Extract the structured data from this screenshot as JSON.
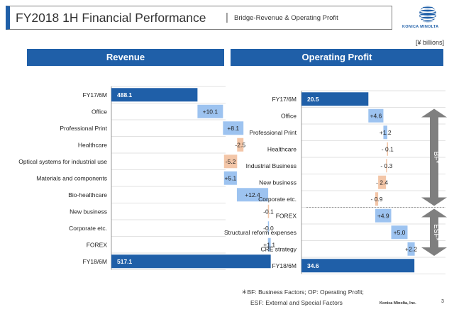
{
  "header": {
    "title": "FY2018 1H Financial Performance",
    "separator": "|",
    "subtitle": "Bridge-Revenue & Operating Profit",
    "brand_logo_text": "KONICA MINOLTA"
  },
  "unit": "[¥ billions]",
  "colors": {
    "total": "#1f5fa8",
    "increase": "#9dc3f0",
    "decrease": "#f3c6a8",
    "arrow": "#7f7f7f"
  },
  "chart_data": [
    {
      "type": "bar",
      "subtype": "waterfall",
      "title": "Revenue",
      "categories": [
        "FY17/6M",
        "Office",
        "Professional Print",
        "Healthcare",
        "Optical systems for industrial use",
        "Materials and components",
        "Bio-healthcare",
        "New business",
        "Corporate etc.",
        "FOREX",
        "FY18/6M"
      ],
      "values": [
        488.1,
        10.1,
        8.1,
        -2.5,
        -5.2,
        5.1,
        12.4,
        -0.1,
        -0.0,
        1.1,
        517.1
      ],
      "labels": [
        "488.1",
        "+10.1",
        "+8.1",
        "-2.5",
        "-5.2",
        "+5.1",
        "+12.4",
        "-0.1",
        "-0.0",
        "+1.1",
        "517.1"
      ],
      "kinds": [
        "total",
        "delta",
        "delta",
        "delta",
        "delta",
        "delta",
        "delta",
        "delta",
        "delta",
        "delta",
        "total"
      ]
    },
    {
      "type": "bar",
      "subtype": "waterfall",
      "title": "Operating Profit",
      "categories": [
        "FY17/6M",
        "Office",
        "Professional Print",
        "Healthcare",
        "Industrial Business",
        "New business",
        "Corporate etc.",
        "FOREX",
        "Structural reform expenses",
        "CRE strategy",
        "FY18/6M"
      ],
      "values": [
        20.5,
        4.6,
        1.2,
        -0.1,
        -0.3,
        -2.4,
        -0.9,
        4.9,
        5.0,
        2.2,
        34.6
      ],
      "labels": [
        "20.5",
        "+4.6",
        "+1.2",
        "- 0.1",
        "- 0.3",
        "- 2.4",
        "- 0.9",
        "+4.9",
        "+5.0",
        "+2.2",
        "34.6"
      ],
      "kinds": [
        "total",
        "delta",
        "delta",
        "delta",
        "delta",
        "delta",
        "delta",
        "delta",
        "delta",
        "delta",
        "total"
      ],
      "brackets": [
        {
          "label": "BF*",
          "from": 1,
          "to": 6
        },
        {
          "label": "ESF*",
          "from": 7,
          "to": 9
        }
      ]
    }
  ],
  "footnote": {
    "line1": "＊BF: Business Factors; OP: Operating Profit;",
    "line2": "ESF: External and Special Factors"
  },
  "footer": {
    "brand": "Konica Minolta, Inc.",
    "page": "3"
  }
}
